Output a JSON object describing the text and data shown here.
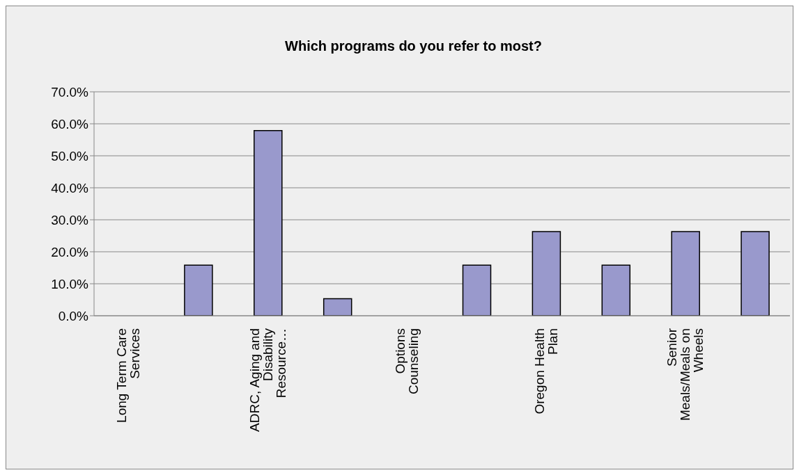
{
  "chart_data": {
    "type": "bar",
    "title": "Which programs do you refer to most?",
    "categories": [
      "Long Term Care Services",
      null,
      "ADRC, Aging and Disability Resource…",
      null,
      "Options Counseling",
      null,
      "Oregon Health Plan",
      null,
      "Senior Meals/Meals on Wheels",
      null
    ],
    "values": [
      0,
      15.8,
      57.9,
      5.3,
      0,
      15.8,
      26.3,
      15.8,
      26.3,
      26.3
    ],
    "color": "#9999cc",
    "ylim": [
      0,
      70
    ],
    "yticks": [
      {
        "value": 0,
        "label": "0.0%"
      },
      {
        "value": 10,
        "label": "10.0%"
      },
      {
        "value": 20,
        "label": "20.0%"
      },
      {
        "value": 30,
        "label": "30.0%"
      },
      {
        "value": 40,
        "label": "40.0%"
      },
      {
        "value": 50,
        "label": "50.0%"
      },
      {
        "value": 60,
        "label": "60.0%"
      },
      {
        "value": 70,
        "label": "70.0%"
      }
    ],
    "grid": "y",
    "legend": false
  }
}
